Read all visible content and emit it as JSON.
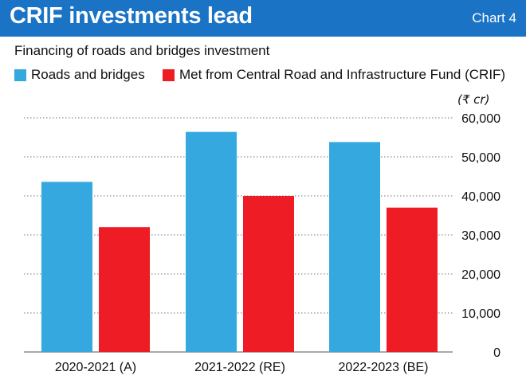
{
  "header": {
    "title": "CRIF investments lead",
    "chart_tag": "Chart 4"
  },
  "colors": {
    "header_bg": "#1a73c4",
    "series_1": "#35a8e0",
    "series_2": "#ee1c25"
  },
  "chart_data": {
    "type": "bar",
    "subtitle": "Financing of roads and bridges investment",
    "unit_label": "(₹ cr)",
    "categories": [
      "2020-2021 (A)",
      "2021-2022 (RE)",
      "2022-2023 (BE)"
    ],
    "series": [
      {
        "name": "Roads and bridges",
        "values": [
          43600,
          56400,
          53800
        ]
      },
      {
        "name": "Met from Central Road and Infrastructure Fund (CRIF)",
        "values": [
          32000,
          40000,
          37000
        ]
      }
    ],
    "ylim": [
      0,
      60000
    ],
    "yticks": [
      0,
      10000,
      20000,
      30000,
      40000,
      50000,
      60000
    ],
    "ytick_labels": [
      "0",
      "10,000",
      "20,000",
      "30,000",
      "40,000",
      "50,000",
      "60,000"
    ],
    "grid": true,
    "legend_position": "top-left"
  }
}
